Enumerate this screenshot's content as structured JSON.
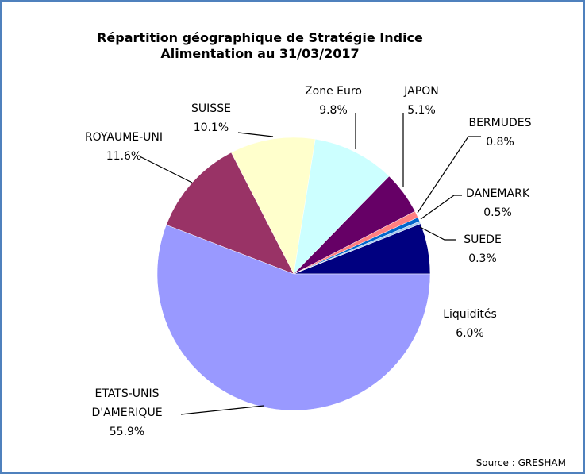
{
  "chart_data": {
    "type": "pie",
    "title": [
      "Répartition géographique de Stratégie Indice",
      "Alimentation au 31/03/2017"
    ],
    "categories": [
      "Liquidités",
      "SUEDE",
      "DANEMARK",
      "BERMUDES",
      "JAPON",
      "Zone Euro",
      "SUISSE",
      "ROYAUME-UNI",
      "ETATS-UNIS D'AMERIQUE"
    ],
    "values": [
      6.0,
      0.3,
      0.5,
      0.8,
      5.1,
      9.8,
      10.1,
      11.6,
      55.9
    ],
    "value_labels": [
      "6.0%",
      "0.3%",
      "0.5%",
      "0.8%",
      "5.1%",
      "9.8%",
      "10.1%",
      "11.6%",
      "55.9%"
    ],
    "colors": [
      "#000080",
      "#a6caf0",
      "#0066cc",
      "#ff8080",
      "#660066",
      "#ccffff",
      "#ffffcc",
      "#993366",
      "#9999ff"
    ],
    "source": "Source : GRESHAM"
  }
}
